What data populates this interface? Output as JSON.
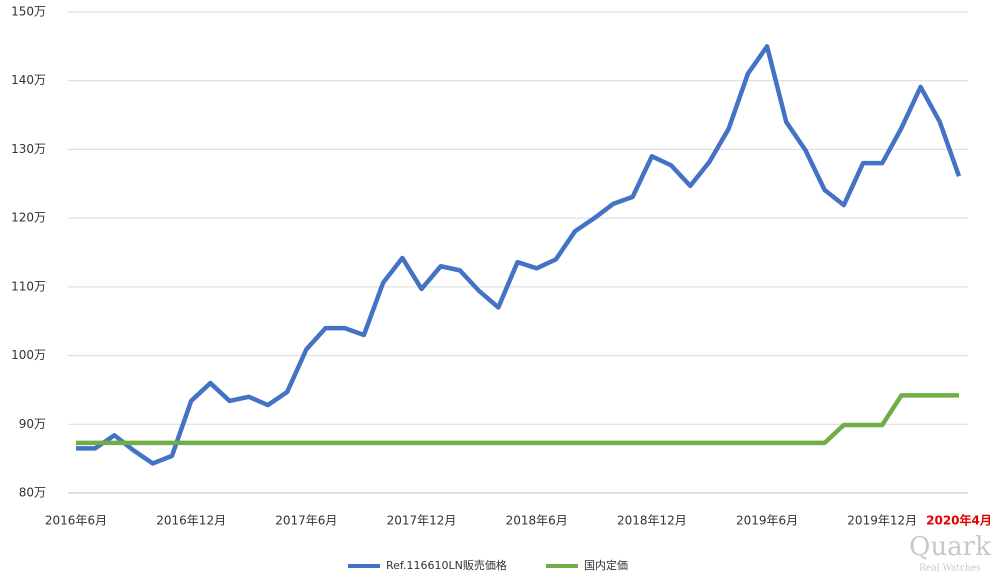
{
  "chart_data": {
    "type": "line",
    "categories": [
      "2016年6月",
      null,
      null,
      null,
      null,
      null,
      "2016年12月",
      null,
      null,
      null,
      null,
      null,
      "2017年6月",
      null,
      null,
      null,
      null,
      null,
      "2017年12月",
      null,
      null,
      null,
      null,
      null,
      "2018年6月",
      null,
      null,
      null,
      null,
      null,
      "2018年12月",
      null,
      null,
      null,
      null,
      null,
      "2019年6月",
      null,
      null,
      null,
      null,
      null,
      "2019年12月",
      null,
      null,
      null,
      "2020年4月"
    ],
    "series": [
      {
        "name": "Ref.116610LN販売価格",
        "color": "#4472c4",
        "values": [
          86.5,
          86.5,
          88.4,
          86.2,
          84.3,
          85.4,
          93.4,
          96.0,
          93.4,
          94.0,
          92.8,
          94.7,
          100.9,
          104.0,
          104.0,
          103.0,
          110.6,
          114.2,
          109.7,
          113.0,
          112.4,
          109.4,
          107.0,
          113.6,
          112.7,
          114.0,
          118.1,
          120.0,
          122.1,
          123.1,
          129.0,
          127.7,
          124.7,
          128.2,
          133.0,
          141.0,
          145.0,
          134.0,
          129.9,
          124.1,
          121.9,
          128.0,
          128.0,
          133.1,
          139.1,
          134.0,
          126.1
        ]
      },
      {
        "name": "国内定価",
        "color": "#70ad47",
        "values": [
          87.3,
          87.3,
          87.3,
          87.3,
          87.3,
          87.3,
          87.3,
          87.3,
          87.3,
          87.3,
          87.3,
          87.3,
          87.3,
          87.3,
          87.3,
          87.3,
          87.3,
          87.3,
          87.3,
          87.3,
          87.3,
          87.3,
          87.3,
          87.3,
          87.3,
          87.3,
          87.3,
          87.3,
          87.3,
          87.3,
          87.3,
          87.3,
          87.3,
          87.3,
          87.3,
          87.3,
          87.3,
          87.3,
          87.3,
          87.3,
          89.9,
          89.9,
          89.9,
          94.2,
          94.2,
          94.2,
          94.2
        ]
      }
    ],
    "ylim": [
      80,
      150
    ],
    "yticks": [
      {
        "value": 80,
        "label": "80万"
      },
      {
        "value": 90,
        "label": "90万"
      },
      {
        "value": 100,
        "label": "100万"
      },
      {
        "value": 110,
        "label": "110万"
      },
      {
        "value": 120,
        "label": "120万"
      },
      {
        "value": 130,
        "label": "130万"
      },
      {
        "value": 140,
        "label": "140万"
      },
      {
        "value": 150,
        "label": "150万"
      }
    ],
    "grid": true,
    "legend": "bottom",
    "watermark": "Quark",
    "watermark_sub": "Real Watches"
  }
}
